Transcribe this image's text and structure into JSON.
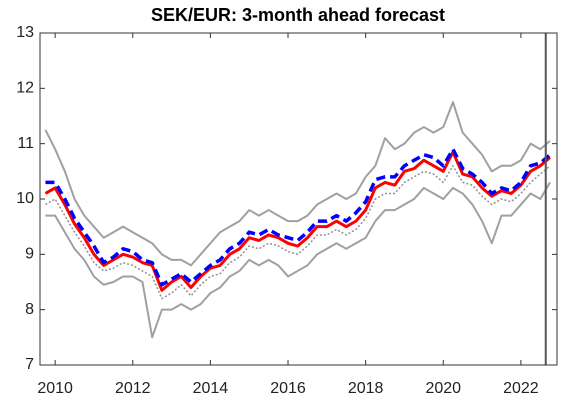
{
  "chart_data": {
    "type": "line",
    "title": "SEK/EUR: 3-month ahead forecast",
    "x": [
      2009.75,
      2010,
      2010.25,
      2010.5,
      2010.75,
      2011,
      2011.25,
      2011.5,
      2011.75,
      2012,
      2012.25,
      2012.5,
      2012.75,
      2013,
      2013.25,
      2013.5,
      2013.75,
      2014,
      2014.25,
      2014.5,
      2014.75,
      2015,
      2015.25,
      2015.5,
      2015.75,
      2016,
      2016.25,
      2016.5,
      2016.75,
      2017,
      2017.25,
      2017.5,
      2017.75,
      2018,
      2018.25,
      2018.5,
      2018.75,
      2019,
      2019.25,
      2019.5,
      2019.75,
      2020,
      2020.25,
      2020.5,
      2020.75,
      2021,
      2021.25,
      2021.5,
      2021.75,
      2022,
      2022.25,
      2022.5,
      2022.75
    ],
    "series": [
      {
        "color": "#a0a0a0",
        "dash": "solid",
        "values": [
          11.25,
          10.9,
          10.5,
          10.0,
          9.7,
          9.5,
          9.3,
          9.4,
          9.5,
          9.4,
          9.3,
          9.2,
          9.0,
          8.9,
          8.9,
          8.8,
          9.0,
          9.2,
          9.4,
          9.5,
          9.6,
          9.8,
          9.7,
          9.8,
          9.7,
          9.6,
          9.6,
          9.7,
          9.9,
          10.0,
          10.1,
          10.0,
          10.1,
          10.4,
          10.6,
          11.1,
          10.9,
          11.0,
          11.2,
          11.3,
          11.2,
          11.3,
          11.75,
          11.2,
          11.0,
          10.8,
          10.5,
          10.6,
          10.6,
          10.7,
          11.0,
          10.9,
          11.05
        ]
      },
      {
        "color": "#a0a0a0",
        "dash": "solid",
        "values": [
          9.7,
          9.7,
          9.4,
          9.1,
          8.9,
          8.6,
          8.45,
          8.5,
          8.6,
          8.6,
          8.5,
          7.5,
          8.0,
          8.0,
          8.1,
          8.0,
          8.1,
          8.3,
          8.4,
          8.6,
          8.7,
          8.9,
          8.8,
          8.9,
          8.8,
          8.6,
          8.7,
          8.8,
          9.0,
          9.1,
          9.2,
          9.1,
          9.2,
          9.3,
          9.6,
          9.8,
          9.8,
          9.9,
          10.0,
          10.2,
          10.1,
          10.0,
          10.2,
          10.1,
          9.9,
          9.6,
          9.2,
          9.7,
          9.7,
          9.9,
          10.1,
          10.0,
          10.3
        ]
      },
      {
        "color": "#909090",
        "dash": "dotted",
        "values": [
          9.9,
          10.0,
          9.7,
          9.4,
          9.15,
          8.85,
          8.7,
          8.75,
          8.85,
          8.8,
          8.7,
          8.6,
          8.2,
          8.3,
          8.45,
          8.25,
          8.45,
          8.6,
          8.65,
          8.85,
          8.95,
          9.15,
          9.1,
          9.2,
          9.15,
          9.05,
          9.0,
          9.15,
          9.35,
          9.35,
          9.45,
          9.35,
          9.45,
          9.65,
          10.0,
          10.1,
          10.1,
          10.3,
          10.4,
          10.5,
          10.45,
          10.3,
          10.6,
          10.3,
          10.25,
          10.05,
          9.9,
          10.0,
          9.95,
          10.1,
          10.3,
          10.45,
          10.6
        ]
      },
      {
        "color": "#ff0000",
        "dash": "solid",
        "values": [
          10.1,
          10.2,
          9.9,
          9.55,
          9.3,
          9.0,
          8.8,
          8.9,
          9.0,
          8.95,
          8.85,
          8.8,
          8.35,
          8.5,
          8.6,
          8.4,
          8.6,
          8.75,
          8.8,
          9.0,
          9.1,
          9.3,
          9.25,
          9.35,
          9.3,
          9.2,
          9.15,
          9.3,
          9.5,
          9.5,
          9.6,
          9.5,
          9.6,
          9.8,
          10.2,
          10.3,
          10.25,
          10.5,
          10.55,
          10.7,
          10.6,
          10.5,
          10.85,
          10.45,
          10.4,
          10.2,
          10.05,
          10.15,
          10.1,
          10.25,
          10.5,
          10.6,
          10.75
        ]
      },
      {
        "color": "#0000ff",
        "dash": "dashed",
        "values": [
          10.3,
          10.3,
          10.0,
          9.65,
          9.4,
          9.15,
          8.85,
          8.95,
          9.1,
          9.05,
          8.9,
          8.85,
          8.45,
          8.55,
          8.65,
          8.5,
          8.65,
          8.8,
          8.9,
          9.1,
          9.2,
          9.4,
          9.35,
          9.45,
          9.35,
          9.3,
          9.25,
          9.4,
          9.6,
          9.6,
          9.7,
          9.6,
          9.75,
          9.95,
          10.35,
          10.4,
          10.4,
          10.6,
          10.7,
          10.8,
          10.75,
          10.6,
          10.9,
          10.55,
          10.45,
          10.3,
          10.1,
          10.2,
          10.15,
          10.3,
          10.6,
          10.65,
          10.8
        ]
      }
    ],
    "xlim": [
      2009.61,
      2022.93
    ],
    "xticks": [
      2010,
      2012,
      2014,
      2016,
      2018,
      2020,
      2022
    ],
    "ylim": [
      7,
      13
    ],
    "yticks": [
      7,
      8,
      9,
      10,
      11,
      12,
      13
    ],
    "vline": 2022.64,
    "vline_color": "#555555"
  }
}
